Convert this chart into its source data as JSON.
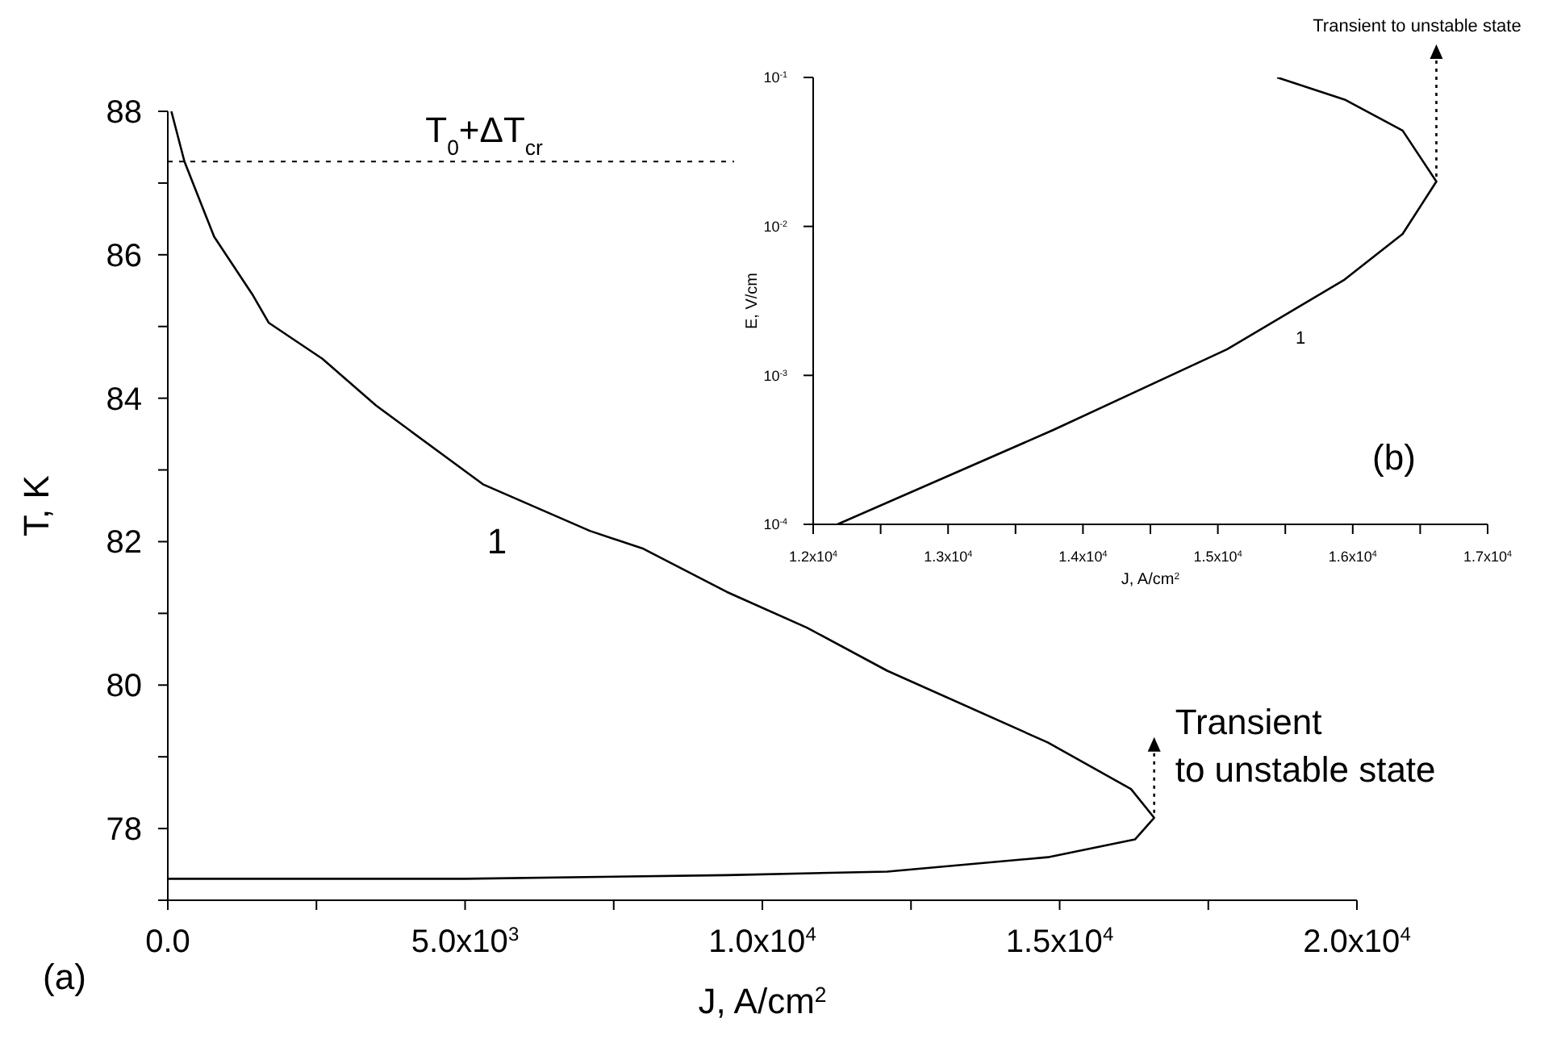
{
  "chart_data": [
    {
      "type": "line",
      "xlabel": "J, A/cm$^{2}$",
      "ylabel": "T, K",
      "series": [
        {
          "color": "#000000",
          "x": [
            60,
            280,
            470,
            780,
            1420,
            1700,
            2600,
            3500,
            5300,
            7100,
            8000,
            9400,
            10750,
            12100,
            14800,
            16200,
            16590,
            16270,
            14800,
            12100,
            9400,
            5000,
            0
          ],
          "values": [
            88,
            87.3,
            86.9,
            86.25,
            85.45,
            85.05,
            84.55,
            83.9,
            82.8,
            82.15,
            81.9,
            81.3,
            80.8,
            80.2,
            79.2,
            78.55,
            78.15,
            77.85,
            77.6,
            77.4,
            77.35,
            77.3,
            77.3
          ]
        }
      ],
      "xlim": [
        0,
        20000
      ],
      "xticks": [
        {
          "value": 0,
          "label": "0.0"
        },
        {
          "value": 2500,
          "label": null
        },
        {
          "value": 5000,
          "label": "5.0x10$^{3}$"
        },
        {
          "value": 7500,
          "label": null
        },
        {
          "value": 10000,
          "label": "1.0x10$^{4}$"
        },
        {
          "value": 12500,
          "label": null
        },
        {
          "value": 15000,
          "label": "1.5x10$^{4}$"
        },
        {
          "value": 17500,
          "label": null
        },
        {
          "value": 20000,
          "label": "2.0x10$^{4}$"
        }
      ],
      "ylim": [
        77,
        88
      ],
      "yticks": [
        {
          "value": 77,
          "label": null
        },
        78,
        {
          "value": 79,
          "label": null
        },
        80,
        {
          "value": 81,
          "label": null
        },
        82,
        {
          "value": 83,
          "label": null
        },
        84,
        {
          "value": 85,
          "label": null
        },
        86,
        {
          "value": 87,
          "label": null
        },
        88
      ],
      "ref_lines": [
        {
          "axis": "y",
          "value": 87.3,
          "label": "T$_{0}$+ΔT$_{cr}$",
          "line_style": "dotted"
        }
      ],
      "annotations": [
        "(a)",
        "1",
        {
          "text": "Transient\nto unstable state",
          "x": 16590,
          "y": 78.15
        }
      ]
    },
    {
      "type": "line",
      "xlabel": "J, A/cm$^{2}$",
      "ylabel": "E, V/cm",
      "log": "y",
      "series": [
        {
          "color": "#000000",
          "x": [
            12180,
            13780,
            15070,
            15940,
            16370,
            16620,
            16370,
            15940,
            15440
          ],
          "values": [
            0.0001,
            0.00043,
            0.0015,
            0.0044,
            0.0089,
            0.02,
            0.044,
            0.071,
            0.1
          ]
        }
      ],
      "xlim": [
        12000,
        17000
      ],
      "xticks": [
        {
          "value": 12000,
          "label": "1.2x10$^{4}$"
        },
        {
          "value": 12500,
          "label": null
        },
        {
          "value": 13000,
          "label": "1.3x10$^{4}$"
        },
        {
          "value": 13500,
          "label": null
        },
        {
          "value": 14000,
          "label": "1.4x10$^{4}$"
        },
        {
          "value": 14500,
          "label": null
        },
        {
          "value": 15000,
          "label": "1.5x10$^{4}$"
        },
        {
          "value": 15500,
          "label": null
        },
        {
          "value": 16000,
          "label": "1.6x10$^{4}$"
        },
        {
          "value": 16500,
          "label": null
        },
        {
          "value": 17000,
          "label": "1.7x10$^{4}$"
        }
      ],
      "ylim": [
        0.0001,
        0.1
      ],
      "yticks": [
        {
          "value": 0.0001,
          "label": "10$^{-4}$"
        },
        {
          "value": 0.001,
          "label": "10$^{-3}$"
        },
        {
          "value": 0.01,
          "label": "10$^{-2}$"
        },
        {
          "value": 0.1,
          "label": "10$^{-1}$"
        }
      ],
      "annotations": [
        "(b)",
        "1",
        {
          "text": "Transient to unstable state",
          "x": 16620,
          "y": 0.02
        }
      ]
    }
  ]
}
